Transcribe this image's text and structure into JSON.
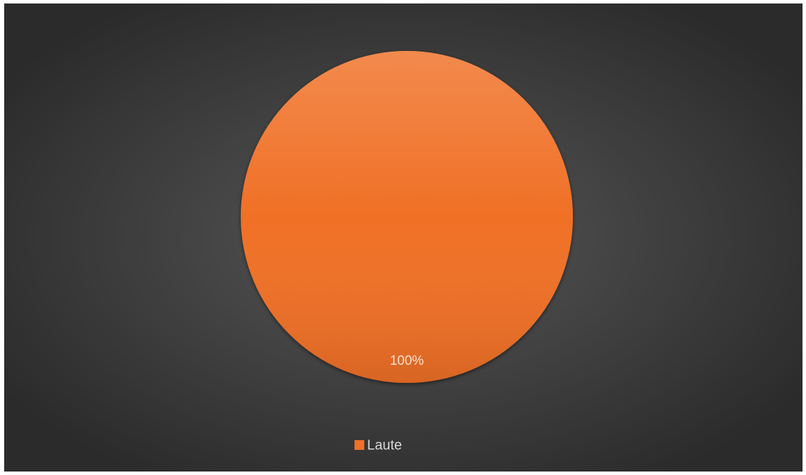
{
  "chart_data": {
    "type": "pie",
    "categories": [
      "Laute"
    ],
    "values": [
      100
    ],
    "value_labels": [
      "100%"
    ],
    "colors": [
      "#f07028"
    ],
    "legend": "bottom"
  }
}
